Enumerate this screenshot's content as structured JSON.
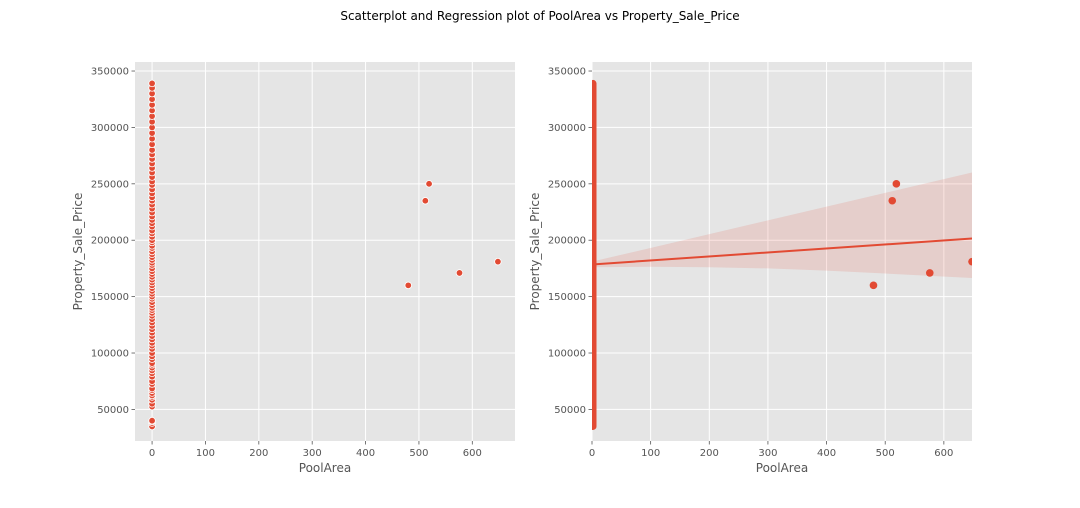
{
  "figure": {
    "suptitle": "Scatterplot and Regression plot of PoolArea vs Property_Sale_Price",
    "background_color": "#ffffff",
    "axes_facecolor": "#e5e5e5",
    "grid_color": "#ffffff",
    "marker_color": "#e24a33",
    "band_color": "#e24a33"
  },
  "chart_data": [
    {
      "type": "scatter",
      "xlabel": "PoolArea",
      "ylabel": "Property_Sale_Price",
      "xlim": [
        -32,
        680
      ],
      "ylim": [
        22000,
        358000
      ],
      "xticks": [
        0,
        100,
        200,
        300,
        400,
        500,
        600
      ],
      "yticks": [
        50000,
        100000,
        150000,
        200000,
        250000,
        300000,
        350000
      ],
      "grid": true,
      "marker_edge": "white",
      "points_at_zero": [
        34900,
        37900,
        39300,
        40000,
        52500,
        55000,
        58500,
        61000,
        62383,
        64500,
        67000,
        68500,
        72500,
        75000,
        79000,
        82000,
        84500,
        87000,
        89500,
        91000,
        94500,
        97000,
        100000,
        103600,
        106500,
        109000,
        112000,
        115000,
        118000,
        121000,
        124000,
        127000,
        130000,
        133000,
        135500,
        138000,
        140000,
        142500,
        145000,
        148000,
        150000,
        152500,
        155000,
        157500,
        160000,
        162500,
        165000,
        167500,
        170000,
        172500,
        175000,
        178000,
        180000,
        182500,
        185000,
        187500,
        190000,
        193000,
        195000,
        198000,
        200000,
        203000,
        206000,
        208500,
        212000,
        215000,
        218000,
        221000,
        224500,
        228000,
        231500,
        235000,
        238000,
        241500,
        245000,
        249000,
        252000,
        256000,
        260000,
        264000,
        268000,
        272000,
        276000,
        280000,
        285000,
        290000,
        295000,
        300000,
        305000,
        310000,
        315000,
        320000,
        325000,
        330000,
        335000,
        339000
      ],
      "points": [
        {
          "x": 480,
          "y": 160000
        },
        {
          "x": 512,
          "y": 235000
        },
        {
          "x": 519,
          "y": 250000
        },
        {
          "x": 576,
          "y": 171000
        },
        {
          "x": 648,
          "y": 181000
        }
      ]
    },
    {
      "type": "scatter",
      "xlabel": "PoolArea",
      "ylabel": "Property_Sale_Price",
      "xlim": [
        0,
        648
      ],
      "ylim": [
        22000,
        358000
      ],
      "xticks": [
        0,
        100,
        200,
        300,
        400,
        500,
        600
      ],
      "yticks": [
        50000,
        100000,
        150000,
        200000,
        250000,
        300000,
        350000
      ],
      "grid": true,
      "points_at_zero_range": [
        34900,
        339000
      ],
      "points": [
        {
          "x": 480,
          "y": 160000
        },
        {
          "x": 512,
          "y": 235000
        },
        {
          "x": 519,
          "y": 250000
        },
        {
          "x": 576,
          "y": 171000
        },
        {
          "x": 648,
          "y": 181000
        }
      ],
      "regression": {
        "x": [
          0,
          648
        ],
        "y": [
          178500,
          201500
        ],
        "ci_upper": [
          [
            0,
            181000
          ],
          [
            648,
            260000
          ]
        ],
        "ci_lower": [
          [
            0,
            176000
          ],
          [
            100,
            176500
          ],
          [
            200,
            176000
          ],
          [
            300,
            175000
          ],
          [
            400,
            173000
          ],
          [
            500,
            170500
          ],
          [
            648,
            166500
          ]
        ]
      }
    }
  ]
}
